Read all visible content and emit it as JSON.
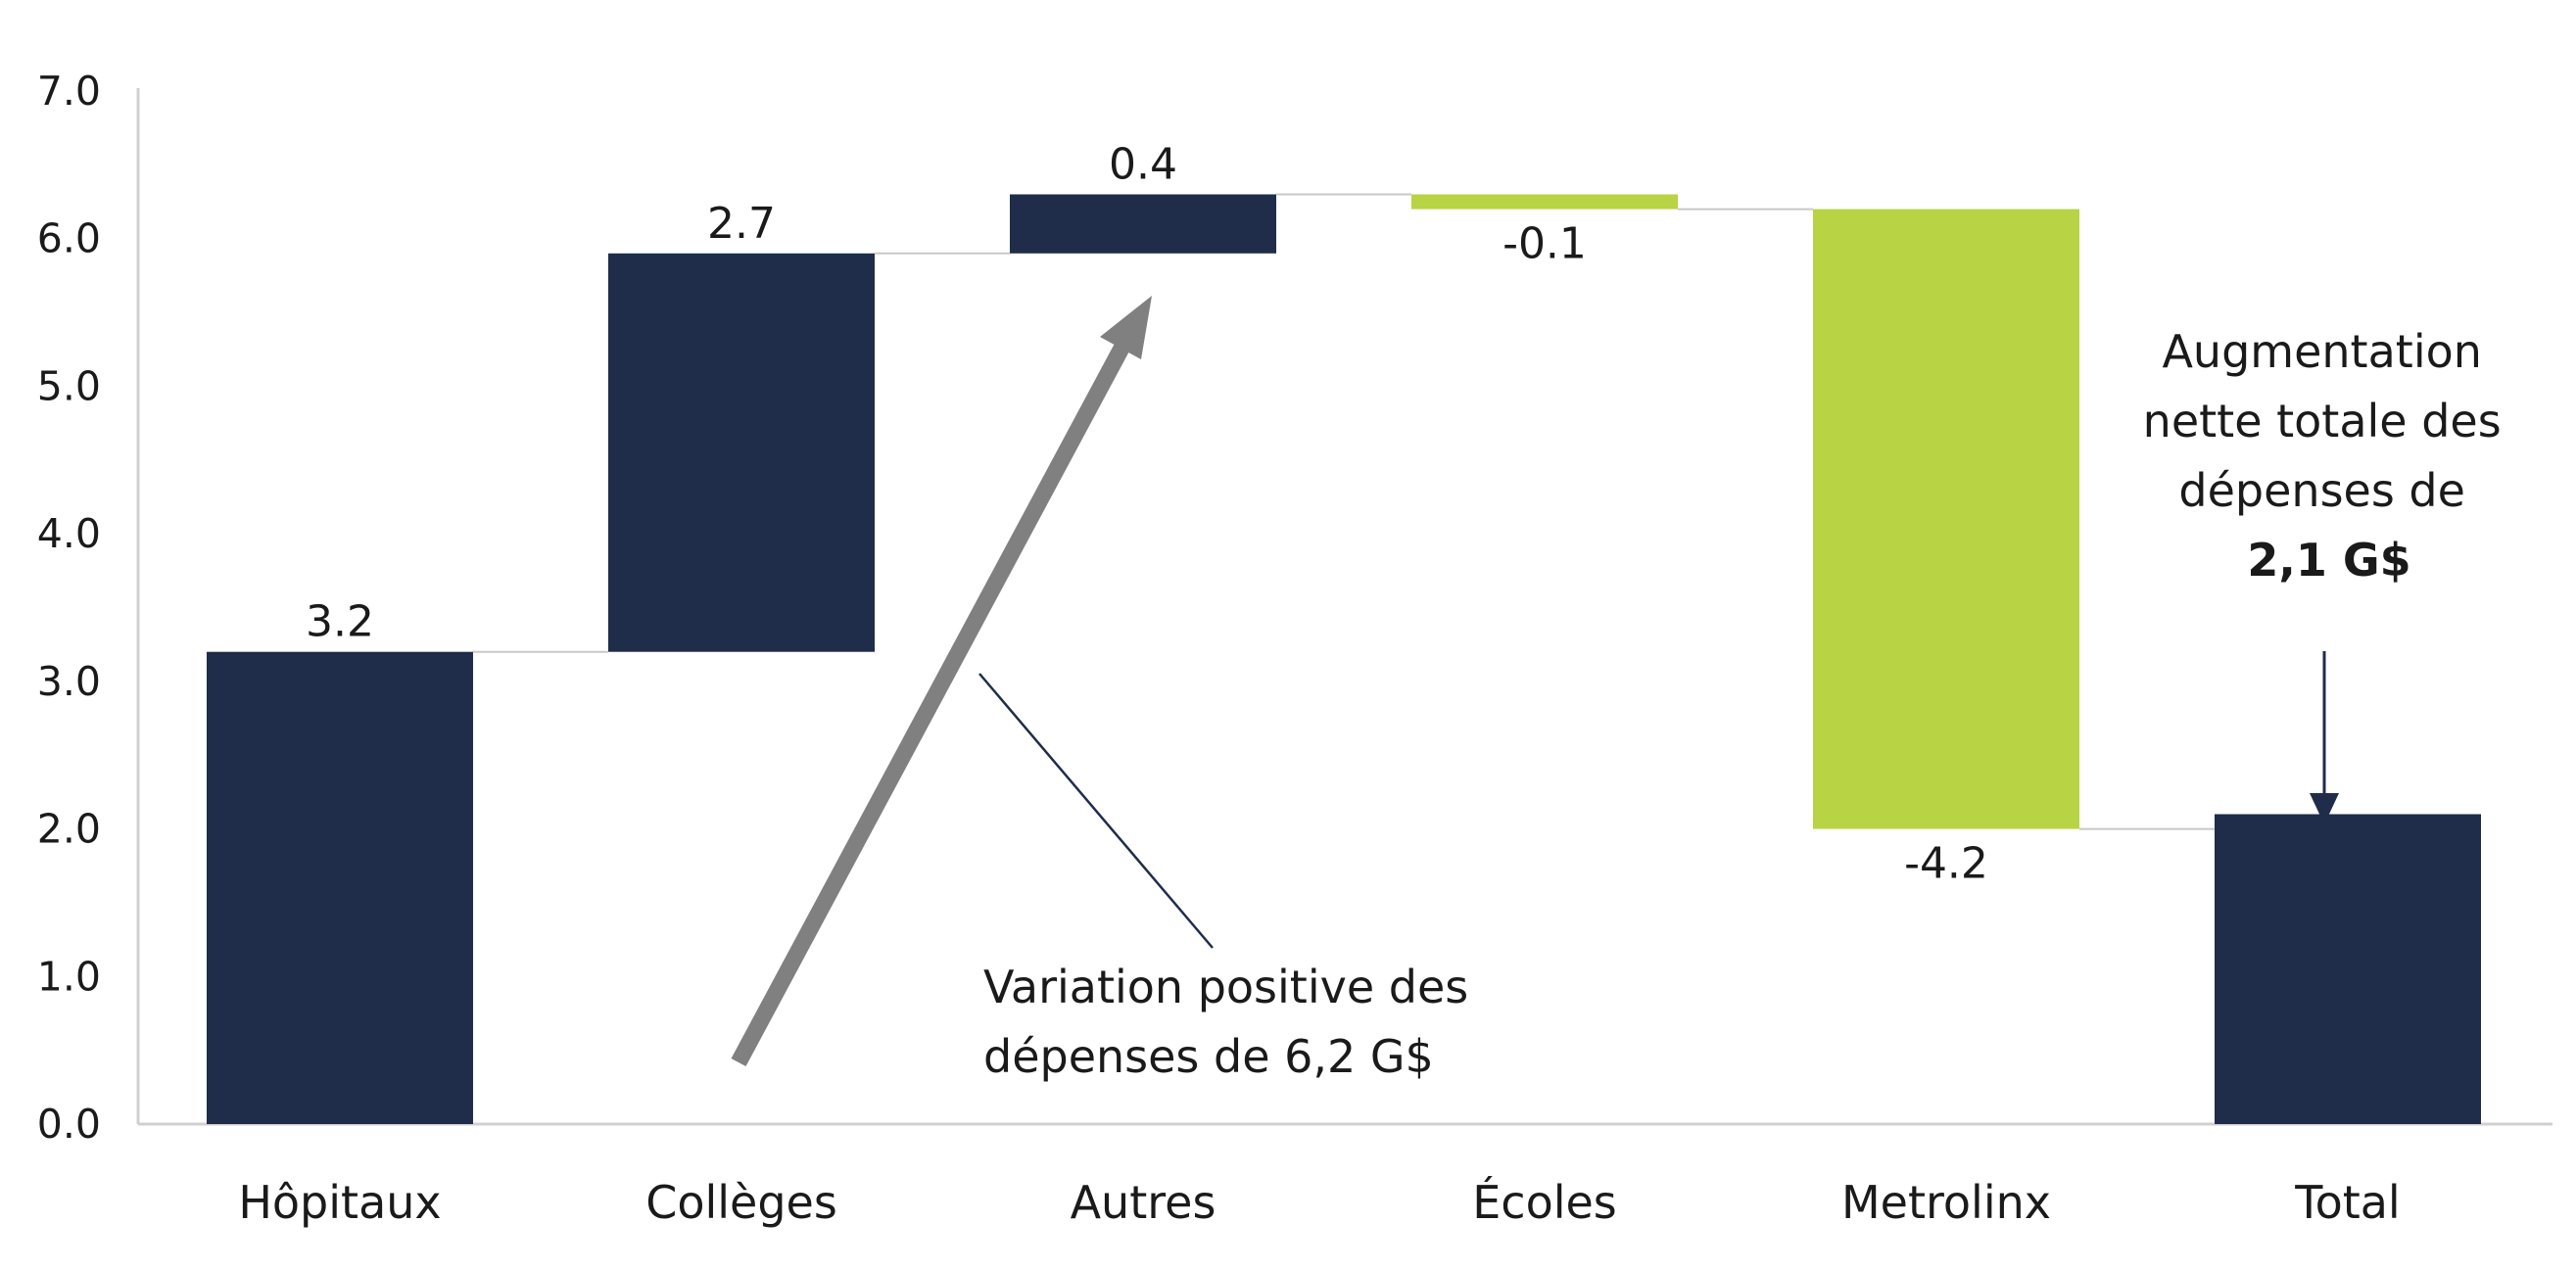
{
  "chart_data": {
    "type": "bar",
    "subtype": "waterfall",
    "title": "",
    "xlabel": "",
    "ylabel": "",
    "ylim": [
      0,
      7
    ],
    "yticks": [
      "0.0",
      "1.0",
      "2.0",
      "3.0",
      "4.0",
      "5.0",
      "6.0",
      "7.0"
    ],
    "grid": false,
    "legend": "none",
    "categories": [
      "Hôpitaux",
      "Collèges",
      "Autres",
      "Écoles",
      "Metrolinx",
      "Total"
    ],
    "values": [
      3.2,
      2.7,
      0.4,
      -0.1,
      -4.2,
      2.1
    ],
    "data_labels": [
      "3.2",
      "2.7",
      "0.4",
      "-0.1",
      "-4.2",
      ""
    ],
    "colors": {
      "positive": "#1f2d4a",
      "negative": "#b8d344",
      "total": "#1f2d4a",
      "connector": "#c8c8c8",
      "axis": "#d0d0d0",
      "big_arrow": "#808080",
      "pointer_line": "#1f2d4a",
      "annotation_arrow": "#1f2d4a"
    },
    "annotations": {
      "positive_change": {
        "lines": [
          "Variation positive des",
          "dépenses de 6,2 G$"
        ]
      },
      "net_total": {
        "lines": [
          "Augmentation",
          "nette totale des",
          "dépenses de"
        ],
        "bold_line": "2,1 G$"
      }
    }
  }
}
